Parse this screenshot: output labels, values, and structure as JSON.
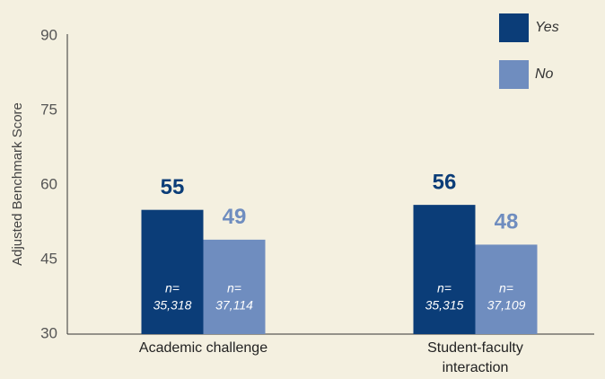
{
  "chart_data": {
    "type": "bar",
    "y_label": "Adjusted Benchmark Score",
    "categories": [
      "Academic challenge",
      "Student-faculty interaction"
    ],
    "series": [
      {
        "name": "Yes",
        "color": "#0b3d78",
        "values": [
          55,
          56
        ],
        "n_labels": [
          "35,318",
          "35,315"
        ]
      },
      {
        "name": "No",
        "color": "#6f8dbf",
        "values": [
          49,
          48
        ],
        "n_labels": [
          "37,114",
          "37,109"
        ]
      }
    ],
    "n_prefix": "n=",
    "ylim": [
      30,
      90
    ],
    "yticks": [
      30,
      45,
      60,
      75,
      90
    ],
    "grid": false,
    "legend": "top-right"
  }
}
